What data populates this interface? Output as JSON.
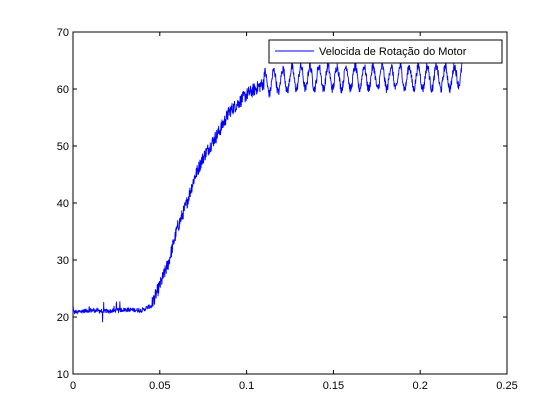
{
  "chart_data": {
    "type": "line",
    "title": "",
    "xlabel": "",
    "ylabel": "",
    "xlim": [
      0,
      0.25
    ],
    "ylim": [
      10,
      70
    ],
    "x_ticks": [
      0,
      0.05,
      0.1,
      0.15,
      0.2,
      0.25
    ],
    "x_tick_labels": [
      "0",
      "0.05",
      "0.1",
      "0.15",
      "0.2",
      "0.25"
    ],
    "y_ticks": [
      10,
      20,
      30,
      40,
      50,
      60,
      70
    ],
    "y_tick_labels": [
      "10",
      "20",
      "30",
      "40",
      "50",
      "60",
      "70"
    ],
    "grid": false,
    "legend_position": "top-right",
    "series": [
      {
        "name": "Velocida de Rotação do Motor",
        "color": "#0000ff",
        "x": [
          0,
          0.01,
          0.02,
          0.03,
          0.04,
          0.045,
          0.05,
          0.055,
          0.06,
          0.065,
          0.07,
          0.075,
          0.08,
          0.085,
          0.09,
          0.095,
          0.1,
          0.105,
          0.11,
          0.12,
          0.13,
          0.14,
          0.15,
          0.16,
          0.17,
          0.18,
          0.19,
          0.2,
          0.21,
          0.22,
          0.225
        ],
        "y": [
          20.8,
          21.2,
          21.0,
          21.3,
          21.2,
          22.0,
          25.5,
          29.5,
          35.5,
          39.5,
          44.5,
          48.0,
          50.5,
          53.0,
          56.0,
          57.5,
          59.0,
          60.0,
          61.0,
          61.5,
          62.0,
          62.0,
          62.0,
          62.0,
          62.0,
          62.0,
          62.0,
          62.0,
          62.0,
          62.0,
          63.5
        ]
      }
    ]
  }
}
